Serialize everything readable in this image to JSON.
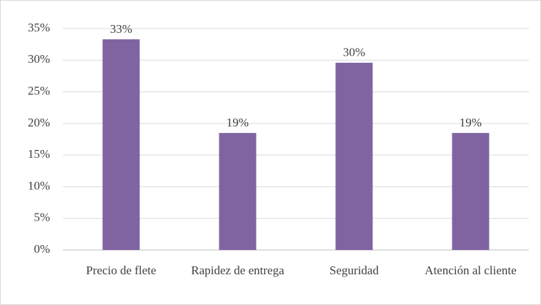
{
  "chart_data": {
    "type": "bar",
    "categories": [
      "Precio de flete",
      "Rapidez de entrega",
      "Seguridad",
      "Atención al cliente"
    ],
    "values": [
      33.3,
      18.5,
      29.6,
      18.5
    ],
    "value_labels": [
      "33%",
      "19%",
      "30%",
      "19%"
    ],
    "color": "#8064a2",
    "ylim": [
      0,
      35
    ],
    "yticks": [
      {
        "value": 0,
        "label": "0%"
      },
      {
        "value": 5,
        "label": "5%"
      },
      {
        "value": 10,
        "label": "10%"
      },
      {
        "value": 15,
        "label": "15%"
      },
      {
        "value": 20,
        "label": "20%"
      },
      {
        "value": 25,
        "label": "25%"
      },
      {
        "value": 30,
        "label": "30%"
      },
      {
        "value": 35,
        "label": "35%"
      }
    ],
    "grid": true
  }
}
